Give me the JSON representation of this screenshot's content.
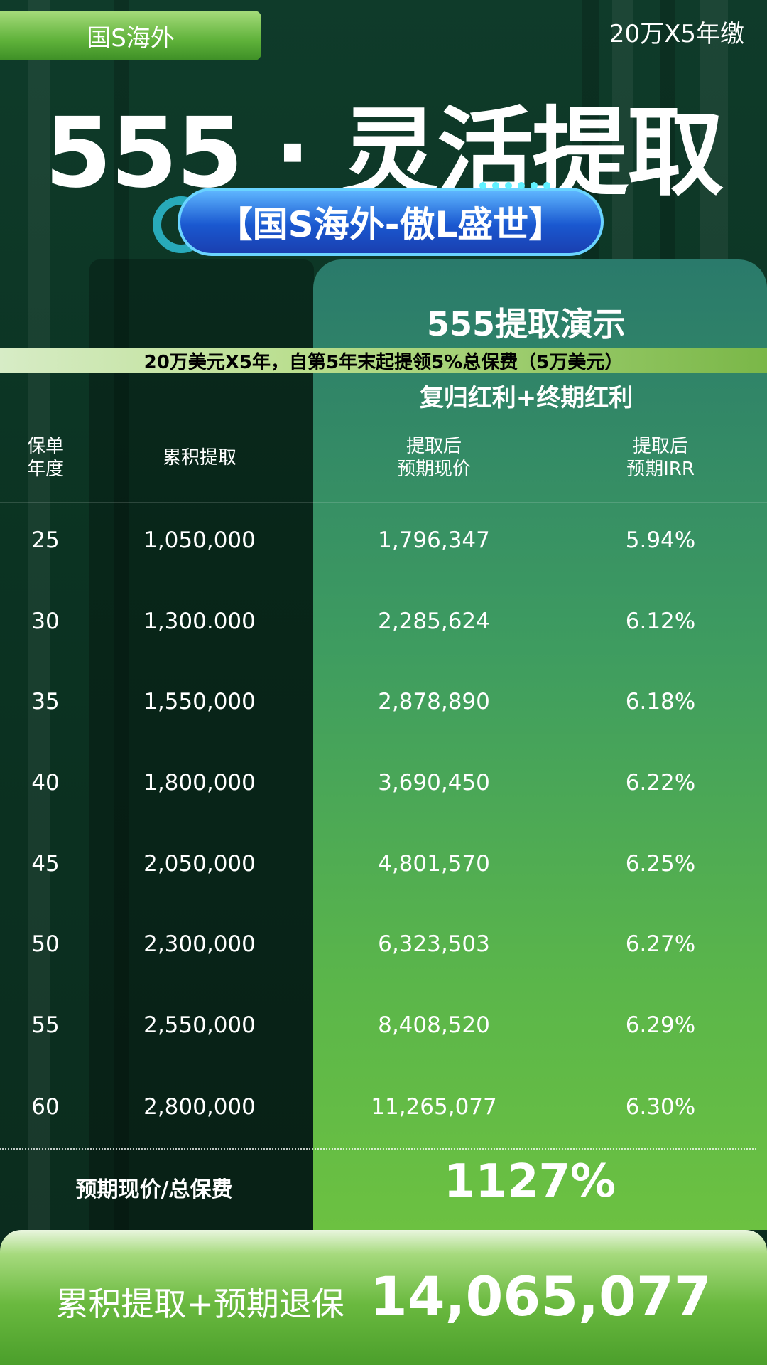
{
  "header": {
    "tag": "国S海外",
    "plan": "20万X5年缴",
    "title": "555 · 灵活提取",
    "product": "【国S海外-傲L盛世】"
  },
  "section": {
    "title": "555提取演示",
    "subtitle": "20万美元X5年，自第5年末起提领5%总保费（5万美元）",
    "bonus": "复归红利+终期红利"
  },
  "table": {
    "headers": {
      "year_line1": "保单",
      "year_line2": "年度",
      "withdraw": "累积提取",
      "value_line1": "提取后",
      "value_line2": "预期现价",
      "irr_line1": "提取后",
      "irr_line2": "预期IRR"
    },
    "rows": [
      {
        "year": "25",
        "withdraw": "1,050,000",
        "value": "1,796,347",
        "irr": "5.94%"
      },
      {
        "year": "30",
        "withdraw": "1,300.000",
        "value": "2,285,624",
        "irr": "6.12%"
      },
      {
        "year": "35",
        "withdraw": "1,550,000",
        "value": "2,878,890",
        "irr": "6.18%"
      },
      {
        "year": "40",
        "withdraw": "1,800,000",
        "value": "3,690,450",
        "irr": "6.22%"
      },
      {
        "year": "45",
        "withdraw": "2,050,000",
        "value": "4,801,570",
        "irr": "6.25%"
      },
      {
        "year": "50",
        "withdraw": "2,300,000",
        "value": "6,323,503",
        "irr": "6.27%"
      },
      {
        "year": "55",
        "withdraw": "2,550,000",
        "value": "8,408,520",
        "irr": "6.29%"
      },
      {
        "year": "60",
        "withdraw": "2,800,000",
        "value": "11,265,077",
        "irr": "6.30%"
      }
    ]
  },
  "ratio": {
    "label": "预期现价/总保费",
    "value": "1127%"
  },
  "footer": {
    "label": "累积提取+预期退保",
    "value": "14,065,077"
  }
}
